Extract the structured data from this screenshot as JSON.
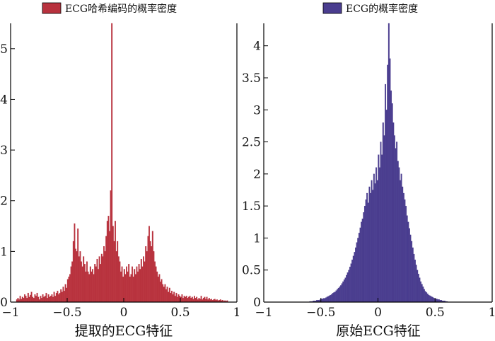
{
  "chart_data": [
    {
      "type": "bar",
      "title": "",
      "xlabel": "提取的ECG特征",
      "ylabel": "",
      "legend": {
        "label": "ECG哈希编码的概率密度",
        "position": "top"
      },
      "color": "#b8323e",
      "xlim": [
        -1,
        1
      ],
      "ylim": [
        0,
        5.5
      ],
      "xticks": [
        -1,
        -0.5,
        0,
        0.5,
        1
      ],
      "xtick_labels": [
        "−1",
        "−0.5",
        "0",
        "0.5",
        "1"
      ],
      "yticks": [
        0,
        1,
        2,
        3,
        4,
        5
      ],
      "ytick_labels": [
        "0",
        "1",
        "2",
        "3",
        "4",
        "5"
      ],
      "grid": false,
      "bins": {
        "start": -0.95,
        "width": 0.01,
        "values": [
          0.05,
          0.08,
          0.05,
          0.12,
          0.06,
          0.1,
          0.08,
          0.15,
          0.12,
          0.08,
          0.18,
          0.1,
          0.14,
          0.2,
          0.1,
          0.08,
          0.15,
          0.12,
          0.18,
          0.1,
          0.05,
          0.12,
          0.08,
          0.15,
          0.1,
          0.12,
          0.18,
          0.08,
          0.15,
          0.1,
          0.12,
          0.15,
          0.1,
          0.2,
          0.12,
          0.18,
          0.22,
          0.15,
          0.18,
          0.25,
          0.2,
          0.3,
          0.22,
          0.35,
          0.28,
          0.45,
          0.5,
          0.55,
          0.7,
          0.8,
          1.2,
          1.55,
          1.05,
          1.0,
          1.45,
          0.9,
          1.0,
          0.8,
          0.7,
          0.9,
          0.75,
          0.6,
          0.8,
          0.6,
          0.55,
          0.7,
          0.6,
          0.65,
          0.55,
          0.75,
          0.7,
          0.85,
          0.65,
          0.9,
          0.75,
          0.95,
          0.9,
          1.1,
          1.0,
          1.3,
          1.6,
          1.7,
          1.4,
          2.2,
          5.5,
          1.5,
          1.2,
          1.6,
          1.0,
          1.2,
          0.9,
          0.8,
          0.6,
          0.7,
          0.5,
          0.65,
          0.55,
          0.7,
          0.6,
          0.75,
          0.5,
          0.55,
          0.7,
          0.5,
          0.65,
          0.55,
          0.7,
          0.6,
          0.75,
          0.65,
          0.85,
          0.7,
          0.9,
          0.8,
          1.1,
          1.0,
          1.3,
          1.5,
          1.2,
          1.1,
          1.4,
          1.0,
          0.8,
          0.7,
          0.6,
          0.5,
          0.55,
          0.4,
          0.45,
          0.35,
          0.3,
          0.35,
          0.25,
          0.3,
          0.2,
          0.28,
          0.18,
          0.22,
          0.15,
          0.2,
          0.12,
          0.18,
          0.1,
          0.15,
          0.12,
          0.1,
          0.15,
          0.08,
          0.12,
          0.1,
          0.12,
          0.08,
          0.1,
          0.12,
          0.08,
          0.1,
          0.06,
          0.12,
          0.08,
          0.1,
          0.05,
          0.08,
          0.06,
          0.12,
          0.05,
          0.08,
          0.1,
          0.06,
          0.1,
          0.05,
          0.08,
          0.05,
          0.06,
          0.04,
          0.05,
          0.06,
          0.04,
          0.05,
          0.03,
          0.04,
          0.05,
          0.03,
          0.04,
          0.02,
          0.03,
          0.02,
          0.03
        ]
      }
    },
    {
      "type": "bar",
      "title": "",
      "xlabel": "原始ECG特征",
      "ylabel": "",
      "legend": {
        "label": "ECG的概率密度",
        "position": "top"
      },
      "color": "#4a3d8f",
      "xlim": [
        -1,
        1
      ],
      "ylim": [
        0,
        4.35
      ],
      "xticks": [
        -1,
        -0.5,
        0,
        0.5,
        1
      ],
      "xtick_labels": [
        "−1",
        "−0.5",
        "0",
        "0.5",
        "1"
      ],
      "yticks": [
        0,
        0.5,
        1,
        1.5,
        2,
        2.5,
        3,
        3.5,
        4
      ],
      "ytick_labels": [
        "0",
        "0.5",
        "1",
        "1.5",
        "2",
        "2.5",
        "3",
        "3.5",
        "4"
      ],
      "grid": false,
      "bins": {
        "start": -0.6,
        "width": 0.01,
        "values": [
          0.01,
          0.01,
          0.01,
          0.02,
          0.02,
          0.02,
          0.03,
          0.03,
          0.03,
          0.04,
          0.05,
          0.05,
          0.06,
          0.06,
          0.07,
          0.08,
          0.09,
          0.1,
          0.11,
          0.12,
          0.14,
          0.15,
          0.16,
          0.18,
          0.2,
          0.22,
          0.24,
          0.26,
          0.29,
          0.32,
          0.35,
          0.38,
          0.42,
          0.46,
          0.5,
          0.55,
          0.6,
          0.66,
          0.72,
          0.78,
          0.85,
          0.93,
          1.0,
          1.08,
          1.16,
          1.25,
          1.3,
          1.4,
          1.5,
          1.6,
          1.7,
          1.55,
          1.8,
          1.7,
          1.9,
          1.75,
          2.0,
          1.85,
          2.1,
          1.9,
          2.3,
          2.1,
          2.5,
          2.3,
          2.8,
          2.6,
          3.4,
          3.0,
          3.7,
          4.35,
          3.8,
          3.3,
          3.1,
          2.8,
          2.6,
          2.4,
          2.5,
          2.2,
          2.1,
          1.9,
          2.0,
          1.8,
          1.7,
          1.6,
          1.5,
          1.35,
          1.25,
          1.15,
          1.05,
          0.95,
          0.85,
          0.75,
          0.66,
          0.58,
          0.5,
          0.44,
          0.38,
          0.32,
          0.28,
          0.24,
          0.2,
          0.17,
          0.15,
          0.13,
          0.11,
          0.1,
          0.09,
          0.08,
          0.07,
          0.06,
          0.05,
          0.05,
          0.04,
          0.04,
          0.03,
          0.03,
          0.02,
          0.02,
          0.02,
          0.01,
          0.01
        ]
      }
    }
  ]
}
